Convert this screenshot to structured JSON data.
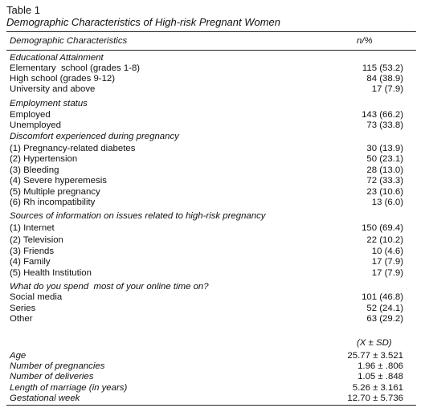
{
  "table": {
    "label": "Table 1",
    "caption": "Demographic Characteristics of High-risk Pregnant Women",
    "header_left": "Demographic Characteristics",
    "header_right": "n/%",
    "sections": [
      {
        "heading": "Educational Attainment",
        "rows": [
          {
            "label": "Elementary  school (grades 1-8)",
            "value": "115 (53.2)"
          },
          {
            "label": "High school (grades 9-12)",
            "value": "84 (38.9)"
          },
          {
            "label": "University and above",
            "value": "17 (7.9)"
          }
        ]
      },
      {
        "heading": "Employment status",
        "rows": [
          {
            "label": "Employed",
            "value": "143 (66.2)"
          },
          {
            "label": "Unemployed",
            "value": "73 (33.8)"
          }
        ]
      },
      {
        "heading": "Discomfort experienced during pregnancy",
        "rows": [
          {
            "label": "(1) Pregnancy-related diabetes",
            "value": "30 (13.9)"
          },
          {
            "label": "(2) Hypertension",
            "value": "50 (23.1)"
          },
          {
            "label": "(3) Bleeding",
            "value": "28 (13.0)"
          },
          {
            "label": "(4) Severe hyperemesis",
            "value": "72 (33.3)"
          },
          {
            "label": "(5) Multiple pregnancy",
            "value": "23 (10.6)"
          },
          {
            "label": "(6) Rh incompatibility",
            "value": "13 (6.0)"
          }
        ]
      },
      {
        "heading": "Sources of information on issues related to high-risk pregnancy",
        "rows": [
          {
            "label": "(1) Internet",
            "value": "150 (69.4)"
          },
          {
            "label": "(2) Television",
            "value": "22 (10.2)"
          },
          {
            "label": "(3) Friends",
            "value": "10 (4.6)"
          },
          {
            "label": "(4) Family",
            "value": "17 (7.9)"
          },
          {
            "label": "(5) Health Institution",
            "value": "17 (7.9)"
          }
        ]
      },
      {
        "heading": "What do you spend  most of your online time on?",
        "rows": [
          {
            "label": "Social media",
            "value": "101 (46.8)"
          },
          {
            "label": "Series",
            "value": "52 (24.1)"
          },
          {
            "label": "Other",
            "value": "63 (29.2)"
          }
        ]
      }
    ],
    "stats_header": "(X ± SD)",
    "stats": [
      {
        "label": "Age",
        "value": "25.77 ± 3.521"
      },
      {
        "label": "Number of pregnancies",
        "value": "1.96 ± .806"
      },
      {
        "label": "Number of deliveries",
        "value": "1.05 ± .848"
      },
      {
        "label": "Length of marriage (in years)",
        "value": "5.26 ± 3.161"
      },
      {
        "label": "Gestational week",
        "value": "12.70 ± 5.736"
      }
    ]
  }
}
